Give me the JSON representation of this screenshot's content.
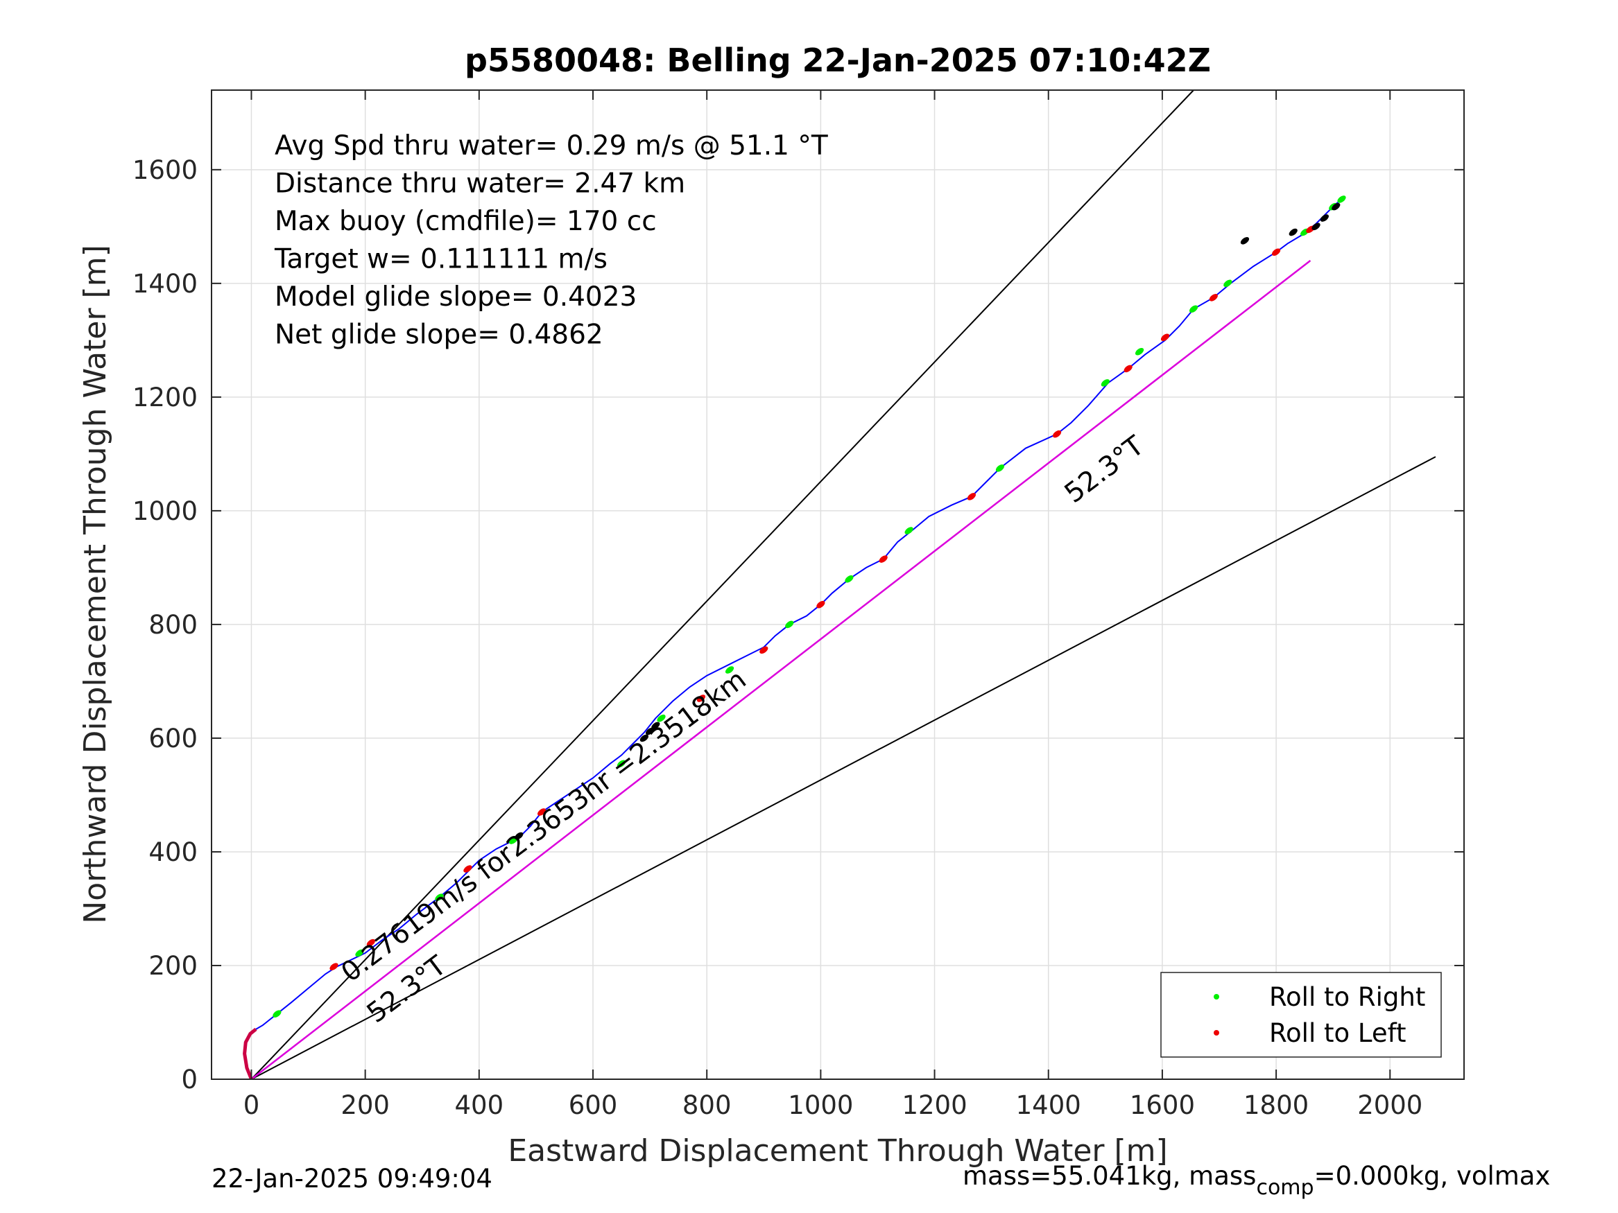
{
  "chart_data": {
    "type": "line",
    "title": "p5580048: Belling 22-Jan-2025 07:10:42Z",
    "xlabel": "Eastward Displacement Through Water [m]",
    "ylabel": "Northward Displacement Through Water [m]",
    "xlim": [
      -70,
      2130
    ],
    "ylim": [
      0,
      1740
    ],
    "xticks": [
      0,
      200,
      400,
      600,
      800,
      1000,
      1200,
      1400,
      1600,
      1800,
      2000
    ],
    "yticks": [
      0,
      200,
      400,
      600,
      800,
      1000,
      1200,
      1400,
      1600
    ],
    "grid": true,
    "legend_position": "bottom-right",
    "annotations": [
      "Avg Spd thru water=  0.29 m/s @  51.1 °T",
      "Distance thru water=  2.47 km",
      "Max buoy (cmdfile)= 170 cc",
      "Target w= 0.111111 m/s",
      "Model glide slope= 0.4023",
      "Net glide slope= 0.4862"
    ],
    "rotated_labels": {
      "heading_upper": "52.3°T",
      "heading_lower": "52.3°T",
      "speed_line": "0.27619m/s for2.3653hr =2.3518km"
    },
    "series": [
      {
        "name": "track",
        "color": "#0000ff",
        "x": [
          0,
          -8,
          -12,
          -10,
          -2,
          8,
          20,
          45,
          70,
          100,
          130,
          150,
          175,
          200,
          230,
          260,
          290,
          330,
          360,
          380,
          400,
          430,
          470,
          490,
          510,
          540,
          570,
          600,
          630,
          650,
          670,
          690,
          710,
          740,
          770,
          800,
          840,
          870,
          900,
          920,
          945,
          975,
          1000,
          1020,
          1050,
          1080,
          1110,
          1135,
          1160,
          1190,
          1230,
          1265,
          1290,
          1315,
          1360,
          1415,
          1440,
          1470,
          1505,
          1540,
          1570,
          1605,
          1630,
          1655,
          1690,
          1720,
          1760,
          1800,
          1820,
          1845,
          1870,
          1890,
          1905,
          1920
        ],
        "y": [
          0,
          20,
          45,
          65,
          80,
          88,
          95,
          115,
          135,
          160,
          185,
          198,
          210,
          222,
          245,
          265,
          290,
          320,
          345,
          365,
          385,
          405,
          425,
          445,
          470,
          490,
          510,
          530,
          555,
          570,
          590,
          610,
          635,
          665,
          690,
          710,
          730,
          745,
          760,
          780,
          800,
          815,
          835,
          855,
          880,
          900,
          915,
          945,
          965,
          990,
          1010,
          1025,
          1050,
          1075,
          1110,
          1135,
          1155,
          1185,
          1225,
          1250,
          1275,
          1300,
          1325,
          1355,
          1375,
          1400,
          1430,
          1455,
          1470,
          1485,
          1505,
          1525,
          1540,
          1550
        ]
      },
      {
        "name": "Roll to Right",
        "color": "#00ee00",
        "x": [
          45,
          190,
          330,
          460,
          650,
          720,
          840,
          945,
          1050,
          1155,
          1315,
          1500,
          1560,
          1655,
          1715,
          1850,
          1900,
          1915
        ],
        "y": [
          115,
          222,
          320,
          420,
          555,
          635,
          720,
          800,
          880,
          965,
          1075,
          1225,
          1280,
          1355,
          1400,
          1490,
          1535,
          1548
        ]
      },
      {
        "name": "Roll to Left",
        "color": "#ee0000",
        "x": [
          145,
          210,
          380,
          510,
          790,
          900,
          1000,
          1110,
          1265,
          1415,
          1540,
          1605,
          1690,
          1800,
          1860
        ],
        "y": [
          198,
          240,
          370,
          470,
          670,
          755,
          835,
          915,
          1025,
          1135,
          1250,
          1305,
          1375,
          1455,
          1495
        ]
      },
      {
        "name": "speed-thru-water",
        "color": "#dd00dd",
        "x": [
          0,
          1860
        ],
        "y": [
          0,
          1440
        ]
      }
    ],
    "reference_lines": [
      {
        "color": "#000000",
        "x": [
          0,
          1655
        ],
        "y": [
          0,
          1740
        ]
      },
      {
        "color": "#000000",
        "x": [
          0,
          1860
        ],
        "y": [
          0,
          1440
        ]
      },
      {
        "color": "#000000",
        "x": [
          0,
          2080
        ],
        "y": [
          0,
          1095
        ]
      }
    ],
    "black_markers": {
      "x": [
        470,
        690,
        700,
        710,
        1745,
        1830,
        1870,
        1885,
        1905
      ],
      "y": [
        428,
        600,
        612,
        622,
        1475,
        1490,
        1500,
        1515,
        1535
      ]
    }
  },
  "footer": {
    "left": "22-Jan-2025 09:49:04",
    "right_prefix": "mass=55.041kg, mass",
    "right_sub": "comp",
    "right_suffix": "=0.000kg, volmax"
  }
}
